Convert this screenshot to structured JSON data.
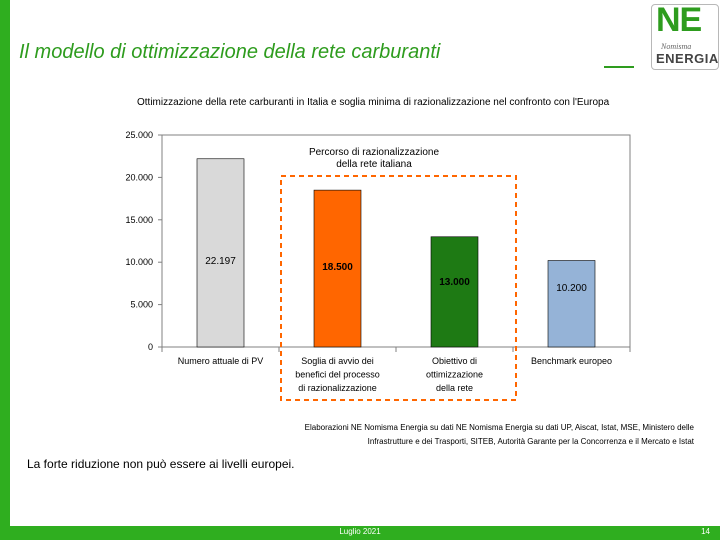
{
  "slide": {
    "title": "Il modello di ottimizzazione della rete carburanti",
    "logo": {
      "ne": "NE",
      "nomisma": "Nomisma",
      "energia": "ENERGIA"
    },
    "note": "La forte riduzione non può essere ai livelli europei.",
    "source_line1": "Elaborazioni NE Nomisma Energia su dati NE Nomisma Energia su dati UP, Aiscat, Istat, MSE, Ministero delle",
    "source_line2": "Infrastrutture e dei Trasporti, SITEB, Autorità Garante per la Concorrenza e il Mercato e Istat",
    "footer_date": "Luglio 2021",
    "page_number": "14"
  },
  "chart_data": {
    "type": "bar",
    "title": "Ottimizzazione della rete carburanti in Italia e soglia minima di razionalizzazione nel confronto con l'Europa",
    "categories": [
      [
        "Numero attuale di PV"
      ],
      [
        "Soglia di avvio dei",
        "benefici del processo",
        "di razionalizzazione"
      ],
      [
        "Obiettivo di",
        "ottimizzazione",
        "della rete"
      ],
      [
        "Benchmark europeo"
      ]
    ],
    "values": [
      22197,
      18500,
      13000,
      10200
    ],
    "value_labels": [
      "22.197",
      "18.500",
      "13.000",
      "10.200"
    ],
    "bar_colors": [
      "#d9d9d9",
      "#ff6600",
      "#1e7a14",
      "#95b3d7"
    ],
    "ylim": [
      0,
      25000
    ],
    "yticks": [
      0,
      5000,
      10000,
      15000,
      20000,
      25000
    ],
    "ytick_labels": [
      "0",
      "5.000",
      "10.000",
      "15.000",
      "20.000",
      "25.000"
    ],
    "grid": false,
    "annotation": [
      "Percorso di razionalizzazione",
      "della rete italiana"
    ],
    "annotation_color": "#ff6600"
  }
}
